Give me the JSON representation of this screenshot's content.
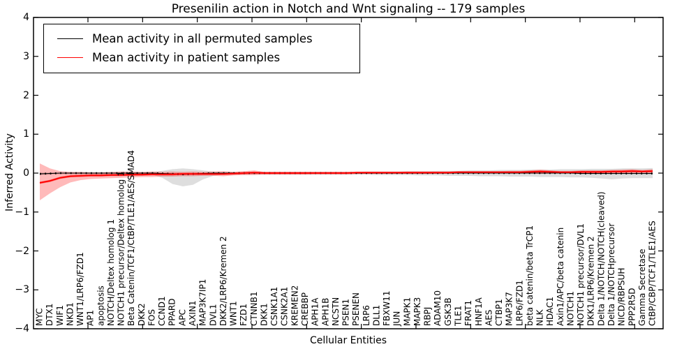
{
  "chart_data": {
    "type": "line",
    "title": "Presenilin action in Notch and Wnt signaling -- 179 samples",
    "xlabel": "Cellular Entities",
    "ylabel": "Inferred Activity",
    "ylim": [
      -4,
      4
    ],
    "ytick_labels": [
      "4",
      "3",
      "2",
      "1",
      "0",
      "−1",
      "−2",
      "−3",
      "−4"
    ],
    "ytick_values": [
      4,
      3,
      2,
      1,
      0,
      -1,
      -2,
      -3,
      -4
    ],
    "grid": "off",
    "legend_position": "upper left",
    "sample_count": "179 samples",
    "categories": [
      "MYC",
      "DTX1",
      "WIF1",
      "NKD1",
      "WNT1/LRP6/FZD1",
      "AP1",
      "apoptosis",
      "NOTCH/Deltex homolog 1",
      "NOTCH1 precursor/Deltex homolog 1",
      "Beta Catenin/TCF1/CtBP/TLE1/AES/SMAD4",
      "DKK2",
      "FOS",
      "CCND1",
      "PPARD",
      "APC",
      "AXIN1",
      "MAP3K7IP1",
      "DVL1",
      "DKK2/LRP6/Kremen 2",
      "WNT1",
      "FZD1",
      "CTNNB1",
      "DKK1",
      "CSNK1A1",
      "CSNK2A1",
      "KREMEN2",
      "CREBBP",
      "APH1A",
      "APH1B",
      "NCSTN",
      "PSEN1",
      "PSENEN",
      "LRP6",
      "DLL1",
      "FBXW11",
      "JUN",
      "MAPK1",
      "MAPK3",
      "RBPJ",
      "ADAM10",
      "GSK3B",
      "TLE1",
      "FRAT1",
      "HNF1A",
      "AES",
      "CTBP1",
      "MAP3K7",
      "LRP6/FZD1",
      "beta catenin/beta TrCP1",
      "NLK",
      "HDAC1",
      "Axin1/APC/beta catenin",
      "NOTCH1",
      "NOTCH1 precursor/DVL1",
      "DKK1/LRP6/Kremen 2",
      "Delta 1/NOTCH/NOTCH(cleaved)",
      "Delta 1/NOTCHprecursor",
      "NICD/RBPSUH",
      "PPP2R5D",
      "Gamma Secretase",
      "CtBP/CBP/TCF1/TLE1/AES"
    ],
    "series": [
      {
        "name": "Mean activity in all permuted samples",
        "color": "#000000",
        "band_color": "rgba(0,0,0,0.13)",
        "mean": [
          -0.02,
          -0.01,
          0,
          0,
          0,
          0,
          0,
          0,
          0,
          0,
          0,
          0,
          -0.01,
          -0.02,
          -0.03,
          -0.02,
          -0.01,
          0,
          0,
          0,
          0,
          0,
          0,
          0,
          0,
          0,
          0,
          0,
          0,
          0,
          0,
          0,
          0,
          0,
          0,
          0,
          0,
          0,
          0,
          0,
          0,
          0,
          0,
          0,
          0,
          0,
          0,
          0,
          0,
          0,
          0,
          0,
          0,
          -0.01,
          -0.01,
          -0.01,
          -0.01,
          -0.01,
          -0.01,
          -0.01,
          -0.01
        ],
        "band_high": [
          0.02,
          0.02,
          0.02,
          0.02,
          0.02,
          0.02,
          0.02,
          0.02,
          0.02,
          0.02,
          0.02,
          0.03,
          0.06,
          0.1,
          0.12,
          0.1,
          0.07,
          0.04,
          0.03,
          0.03,
          0.03,
          0.03,
          0.03,
          0.03,
          0.03,
          0.03,
          0.03,
          0.03,
          0.03,
          0.03,
          0.03,
          0.03,
          0.04,
          0.04,
          0.04,
          0.04,
          0.05,
          0.05,
          0.05,
          0.06,
          0.06,
          0.06,
          0.07,
          0.07,
          0.07,
          0.08,
          0.08,
          0.08,
          0.09,
          0.09,
          0.09,
          0.1,
          0.1,
          0.1,
          0.11,
          0.11,
          0.11,
          0.12,
          0.12,
          0.12,
          0.13
        ],
        "band_low": [
          -0.05,
          -0.04,
          -0.03,
          -0.03,
          -0.03,
          -0.03,
          -0.03,
          -0.03,
          -0.03,
          -0.03,
          -0.03,
          -0.04,
          -0.12,
          -0.28,
          -0.34,
          -0.3,
          -0.16,
          -0.07,
          -0.04,
          -0.04,
          -0.04,
          -0.04,
          -0.04,
          -0.04,
          -0.04,
          -0.04,
          -0.04,
          -0.04,
          -0.04,
          -0.04,
          -0.04,
          -0.04,
          -0.04,
          -0.05,
          -0.05,
          -0.05,
          -0.05,
          -0.06,
          -0.06,
          -0.06,
          -0.07,
          -0.07,
          -0.07,
          -0.08,
          -0.08,
          -0.08,
          -0.09,
          -0.09,
          -0.09,
          -0.1,
          -0.1,
          -0.1,
          -0.11,
          -0.11,
          -0.12,
          -0.14,
          -0.16,
          -0.14,
          -0.13,
          -0.13,
          -0.13
        ]
      },
      {
        "name": "Mean activity in patient samples",
        "color": "#ff0000",
        "band_color": "rgba(255,0,0,0.27)",
        "inner_band_color": "rgba(255,0,0,0.45)",
        "mean": [
          -0.25,
          -0.2,
          -0.12,
          -0.08,
          -0.07,
          -0.06,
          -0.06,
          -0.05,
          -0.05,
          -0.04,
          -0.04,
          -0.03,
          -0.03,
          -0.03,
          -0.02,
          -0.02,
          -0.02,
          -0.02,
          -0.02,
          -0.01,
          0.0,
          0.01,
          0.0,
          0.0,
          0.0,
          0.0,
          0.0,
          0.0,
          0.0,
          0.0,
          0.0,
          0.01,
          0.01,
          0.01,
          0.01,
          0.01,
          0.01,
          0.01,
          0.01,
          0.01,
          0.01,
          0.02,
          0.02,
          0.02,
          0.02,
          0.02,
          0.02,
          0.02,
          0.03,
          0.04,
          0.03,
          0.02,
          0.02,
          0.03,
          0.03,
          0.03,
          0.04,
          0.04,
          0.05,
          0.04,
          0.05
        ],
        "band_high": [
          0.25,
          0.12,
          0.05,
          0.03,
          0.03,
          0.02,
          0.02,
          0.03,
          0.04,
          0.04,
          0.03,
          0.04,
          0.03,
          0.04,
          0.03,
          0.04,
          0.03,
          0.04,
          0.05,
          0.03,
          0.05,
          0.07,
          0.03,
          0.03,
          0.03,
          0.03,
          0.03,
          0.03,
          0.03,
          0.03,
          0.03,
          0.03,
          0.03,
          0.03,
          0.03,
          0.03,
          0.04,
          0.04,
          0.04,
          0.04,
          0.04,
          0.05,
          0.05,
          0.05,
          0.05,
          0.05,
          0.06,
          0.06,
          0.07,
          0.09,
          0.07,
          0.06,
          0.06,
          0.07,
          0.07,
          0.07,
          0.08,
          0.09,
          0.1,
          0.08,
          0.1
        ],
        "band_low": [
          -0.7,
          -0.52,
          -0.36,
          -0.24,
          -0.18,
          -0.15,
          -0.14,
          -0.13,
          -0.12,
          -0.11,
          -0.1,
          -0.1,
          -0.09,
          -0.09,
          -0.08,
          -0.08,
          -0.07,
          -0.07,
          -0.08,
          -0.06,
          -0.05,
          -0.05,
          -0.03,
          -0.03,
          -0.03,
          -0.03,
          -0.03,
          -0.02,
          -0.02,
          -0.02,
          -0.02,
          -0.02,
          -0.02,
          -0.02,
          -0.02,
          -0.02,
          -0.02,
          -0.02,
          -0.02,
          -0.01,
          -0.01,
          -0.01,
          -0.01,
          -0.01,
          -0.01,
          -0.01,
          -0.01,
          -0.01,
          -0.01,
          -0.02,
          -0.01,
          0.0,
          0.0,
          0.0,
          0.0,
          0.0,
          0.0,
          0.0,
          -0.01,
          0.01,
          0.0
        ]
      }
    ]
  }
}
